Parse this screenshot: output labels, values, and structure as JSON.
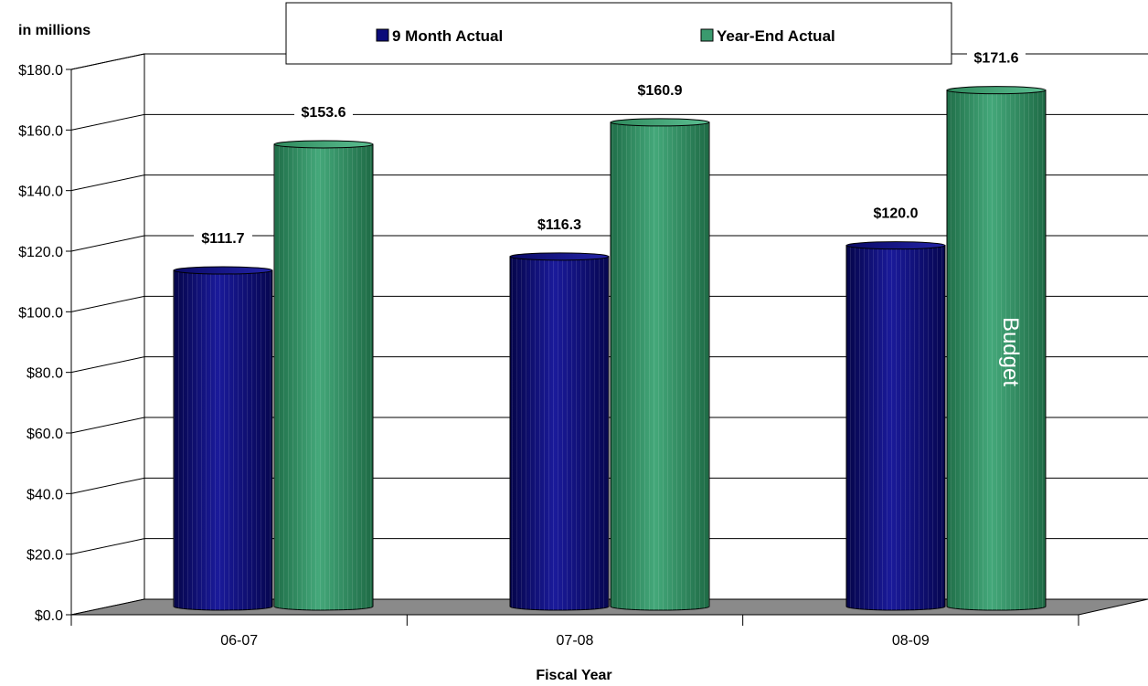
{
  "chart_data": {
    "type": "bar",
    "title": "",
    "unit_label": "in millions",
    "xlabel": "Fiscal Year",
    "ylabel": "",
    "categories": [
      "06-07",
      "07-08",
      "08-09"
    ],
    "series": [
      {
        "name": "9 Month Actual",
        "values": [
          111.7,
          116.3,
          120.0
        ],
        "labels": [
          "$111.7",
          "$116.3",
          "$120.0"
        ],
        "color": "#0b0b7a"
      },
      {
        "name": "Year-End Actual",
        "values": [
          153.6,
          160.9,
          171.6
        ],
        "labels": [
          "$153.6",
          "$160.9",
          "$171.6"
        ],
        "color": "#3a9a6e"
      }
    ],
    "ylim": [
      0,
      180
    ],
    "yticks": [
      0,
      20,
      40,
      60,
      80,
      100,
      120,
      140,
      160,
      180
    ],
    "ytick_labels": [
      "$0.0",
      "$20.0",
      "$40.0",
      "$60.0",
      "$80.0",
      "$100.0",
      "$120.0",
      "$140.0",
      "$160.0",
      "$180.0"
    ],
    "grid": true,
    "legend_position": "top-center",
    "annotation": {
      "text": "Budget",
      "category": "08-09",
      "series": "Year-End Actual"
    }
  }
}
